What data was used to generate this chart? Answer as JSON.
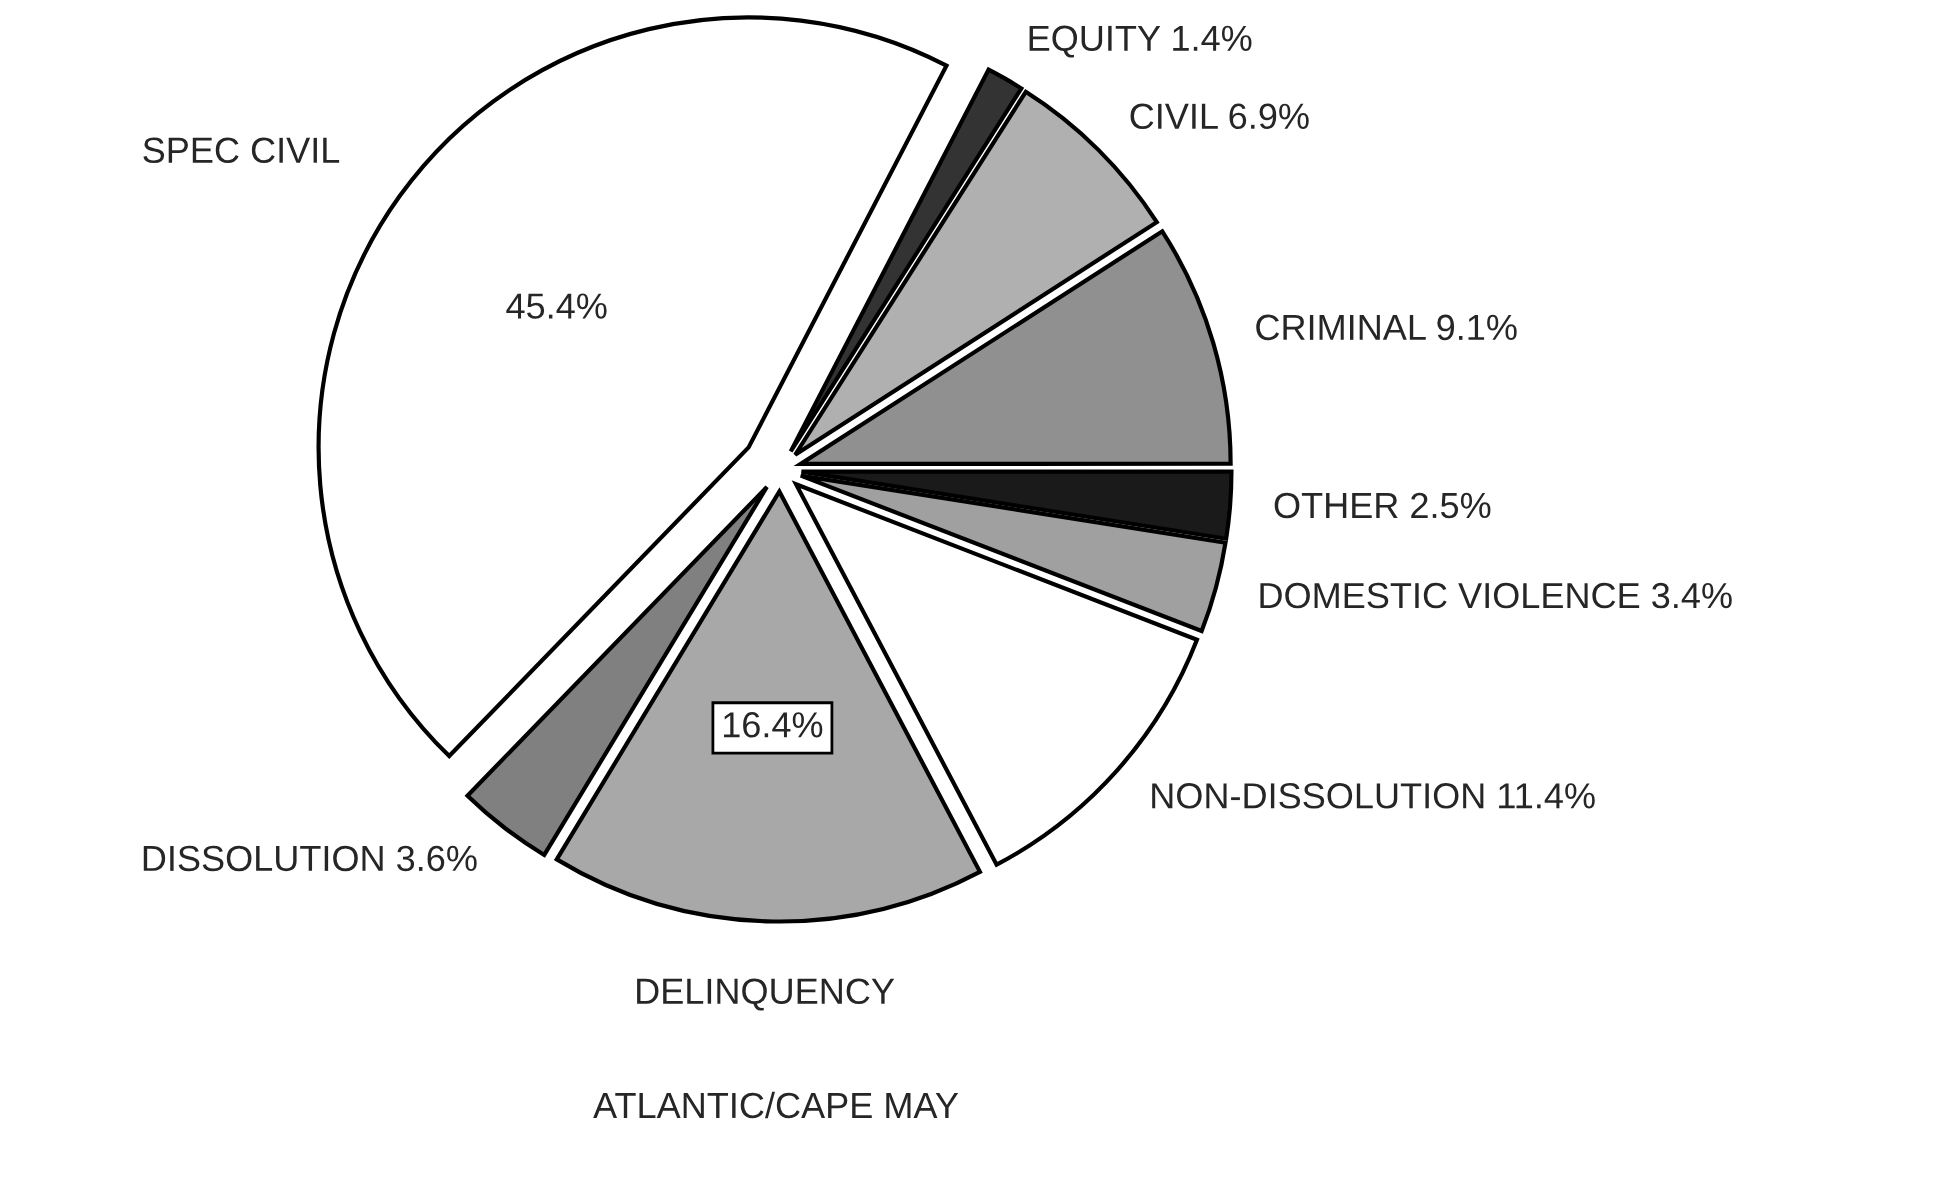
{
  "chart_data": {
    "type": "pie",
    "title": "ATLANTIC/CAPE MAY",
    "categories": [
      "EQUITY",
      "CIVIL",
      "CRIMINAL",
      "OTHER",
      "DOMESTIC VIOLENCE",
      "NON-DISSOLUTION",
      "DELINQUENCY",
      "DISSOLUTION",
      "SPEC CIVIL"
    ],
    "values": [
      1.4,
      6.9,
      9.1,
      2.5,
      3.4,
      11.4,
      16.4,
      3.6,
      45.4
    ],
    "value_labels": [
      "1.4%",
      "6.9%",
      "9.1%",
      "2.5%",
      "3.4%",
      "11.4%",
      "16.4%",
      "3.6%",
      "45.4%"
    ],
    "colors": [
      "#333333",
      "#b0b0b0",
      "#909090",
      "#1a1a1a",
      "#a0a0a0",
      "#ffffff",
      "#a8a8a8",
      "#808080",
      "#ffffff"
    ]
  }
}
